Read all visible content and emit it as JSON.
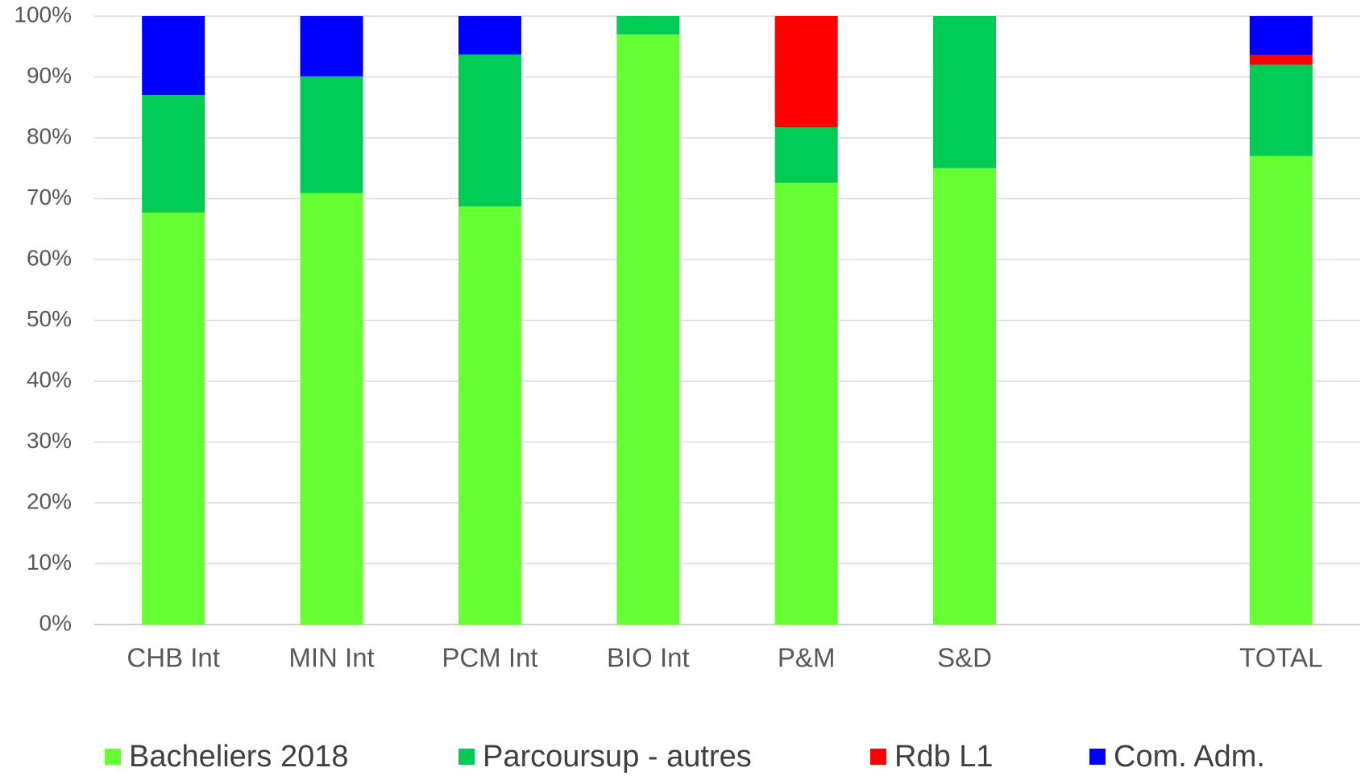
{
  "chart_data": {
    "type": "stacked_bar",
    "categories": [
      "CHB Int",
      "MIN Int",
      "PCM Int",
      "BIO Int",
      "P&M",
      "S&D",
      null,
      "TOTAL"
    ],
    "series": [
      {
        "name": "Bacheliers 2018",
        "color": "#66ff33",
        "values": [
          67.7,
          70.9,
          68.7,
          97,
          72.6,
          75,
          null,
          77
        ]
      },
      {
        "name": "Parcoursup - autres",
        "color": "#00cc55",
        "values": [
          19.3,
          19.2,
          25,
          3,
          9.1,
          25,
          null,
          15
        ]
      },
      {
        "name": "Rdb L1",
        "color": "#ff0000",
        "values": [
          0,
          0,
          0,
          0,
          18.3,
          0,
          null,
          1.6
        ]
      },
      {
        "name": "Com. Adm.",
        "color": "#0000ff",
        "values": [
          13,
          9.9,
          6.3,
          0,
          0,
          0,
          null,
          6.4
        ]
      }
    ],
    "ylim": [
      0,
      100
    ],
    "yticks": [
      {
        "value": 0,
        "label": "0%"
      },
      {
        "value": 10,
        "label": "10%"
      },
      {
        "value": 20,
        "label": "20%"
      },
      {
        "value": 30,
        "label": "30%"
      },
      {
        "value": 40,
        "label": "40%"
      },
      {
        "value": 50,
        "label": "50%"
      },
      {
        "value": 60,
        "label": "60%"
      },
      {
        "value": 70,
        "label": "70%"
      },
      {
        "value": 80,
        "label": "80%"
      },
      {
        "value": 90,
        "label": "90%"
      },
      {
        "value": 100,
        "label": "100%"
      }
    ],
    "grid": true,
    "legend": "bottom"
  }
}
